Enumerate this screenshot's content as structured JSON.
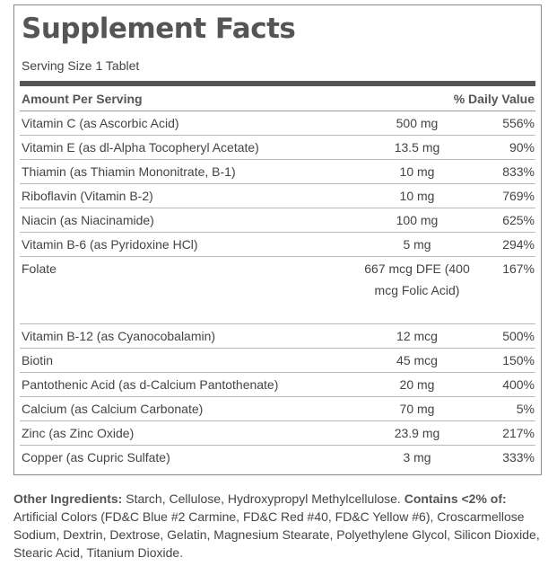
{
  "title": "Supplement Facts",
  "serving_size": "Serving Size 1 Tablet",
  "header": {
    "amount_per_serving": "Amount Per Serving",
    "daily_value": "% Daily Value"
  },
  "nutrients": [
    {
      "name": "Vitamin C (as Ascorbic Acid)",
      "amount": "500 mg",
      "dv": "556%"
    },
    {
      "name": "Vitamin E (as dl-Alpha Tocopheryl Acetate)",
      "amount": "13.5 mg",
      "dv": "90%"
    },
    {
      "name": "Thiamin (as Thiamin Mononitrate, B-1)",
      "amount": "10 mg",
      "dv": "833%"
    },
    {
      "name": "Riboflavin (Vitamin B-2)",
      "amount": "10 mg",
      "dv": "769%"
    },
    {
      "name": "Niacin (as Niacinamide)",
      "amount": "100 mg",
      "dv": "625%"
    },
    {
      "name": "Vitamin B-6 (as Pyridoxine HCl)",
      "amount": "5 mg",
      "dv": "294%"
    },
    {
      "name": "Folate",
      "amount": "667 mcg DFE (400 mcg Folic Acid)",
      "dv": "167%"
    },
    {
      "name": "Vitamin B-12 (as Cyanocobalamin)",
      "amount": "12 mcg",
      "dv": "500%"
    },
    {
      "name": "Biotin",
      "amount": "45 mcg",
      "dv": "150%"
    },
    {
      "name": "Pantothenic Acid (as d-Calcium Pantothenate)",
      "amount": "20 mg",
      "dv": "400%"
    },
    {
      "name": "Calcium (as Calcium Carbonate)",
      "amount": "70 mg",
      "dv": "5%"
    },
    {
      "name": "Zinc (as Zinc Oxide)",
      "amount": "23.9 mg",
      "dv": "217%"
    },
    {
      "name": "Copper (as Cupric Sulfate)",
      "amount": "3 mg",
      "dv": "333%"
    }
  ],
  "other_ingredients": {
    "label": "Other Ingredients:",
    "text": " Starch, Cellulose, Hydroxypropyl Methylcellulose. ",
    "contains_label": "Contains <2% of:",
    "contains_text": " Artificial Colors (FD&C Blue #2 Carmine, FD&C Red #40, FD&C Yellow #6), Croscarmellose Sodium, Dextrin, Dextrose, Gelatin, Magnesium Stearate, Polyethylene Glycol, Silicon Dioxide, Stearic Acid, Titanium Dioxide."
  }
}
